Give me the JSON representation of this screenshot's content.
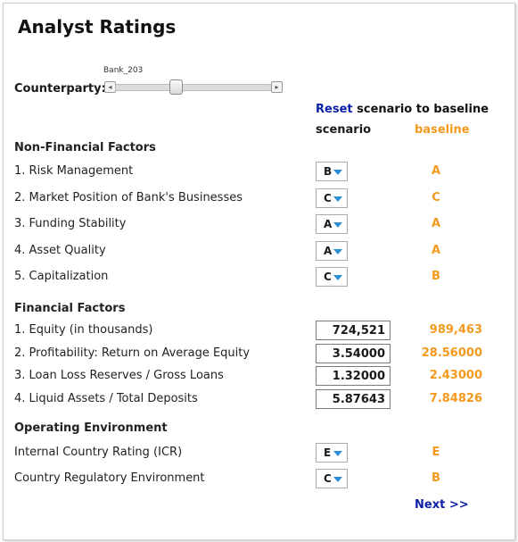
{
  "title": "Analyst Ratings",
  "counterparty": {
    "label": "Counterparty:",
    "slider_value_caption": "Bank_203"
  },
  "reset": {
    "link_label": "Reset",
    "text": " scenario to baseline"
  },
  "columns": {
    "scenario": "scenario",
    "baseline": "baseline"
  },
  "non_financial": {
    "heading": "Non-Financial Factors",
    "rows": [
      {
        "label": "1. Risk Management",
        "scenario": "B",
        "baseline": "A"
      },
      {
        "label": "2. Market Position of Bank's Businesses",
        "scenario": "C",
        "baseline": "C"
      },
      {
        "label": "3. Funding Stability",
        "scenario": "A",
        "baseline": "A"
      },
      {
        "label": "4. Asset Quality",
        "scenario": "A",
        "baseline": "A"
      },
      {
        "label": "5. Capitalization",
        "scenario": "C",
        "baseline": "B"
      }
    ]
  },
  "financial": {
    "heading": "Financial Factors",
    "rows": [
      {
        "label": "1. Equity (in thousands)",
        "scenario": "724,521",
        "baseline": "989,463"
      },
      {
        "label": "2. Profitability: Return on Average Equity",
        "scenario": "3.54000",
        "baseline": "28.56000"
      },
      {
        "label": "3. Loan Loss Reserves / Gross Loans",
        "scenario": "1.32000",
        "baseline": "2.43000"
      },
      {
        "label": "4. Liquid Assets / Total Deposits",
        "scenario": "5.87643",
        "baseline": "7.84826"
      }
    ]
  },
  "operating": {
    "heading": "Operating Environment",
    "rows": [
      {
        "label": "Internal Country Rating (ICR)",
        "scenario": "E",
        "baseline": "E"
      },
      {
        "label": "Country Regulatory Environment",
        "scenario": "C",
        "baseline": "B"
      }
    ]
  },
  "next_label": "Next >>",
  "colors": {
    "link": "#0a1ea8",
    "baseline": "#f39a1e",
    "caret": "#2b8fd6"
  }
}
